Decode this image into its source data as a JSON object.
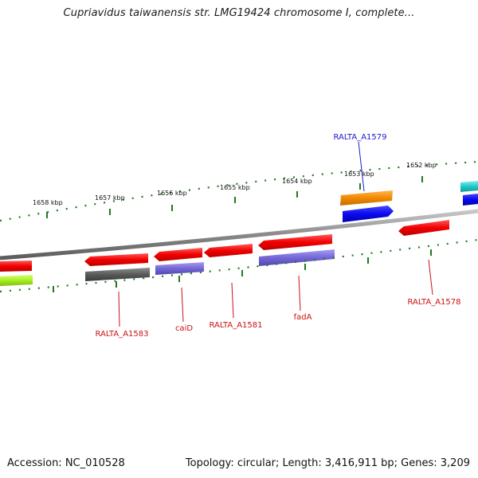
{
  "title": "Cupriavidus taiwanensis str. LMG19424 chromosome I, complete...",
  "footer": {
    "accession": "Accession: NC_010528",
    "summary": "Topology: circular; Length: 3,416,911 bp; Genes: 3,209"
  },
  "colors": {
    "backbone": "#8a8a8a",
    "tick": "#1f7a1f",
    "forward_label": "#1a1acc",
    "reverse_label": "#cc1111"
  },
  "scale": {
    "labels": [
      "1658 kbp",
      "1657 kbp",
      "1656 kbp",
      "1655 kbp",
      "1654 kbp",
      "1653 kbp",
      "1652 kbp"
    ]
  },
  "genes": {
    "forward_labeled": [
      {
        "label": "RALTA_A1579"
      }
    ],
    "reverse_labeled": [
      {
        "label": "RALTA_A1583"
      },
      {
        "label": "caiD"
      },
      {
        "label": "RALTA_A1581"
      },
      {
        "label": "fadA"
      },
      {
        "label": "RALTA_A1578"
      }
    ]
  }
}
